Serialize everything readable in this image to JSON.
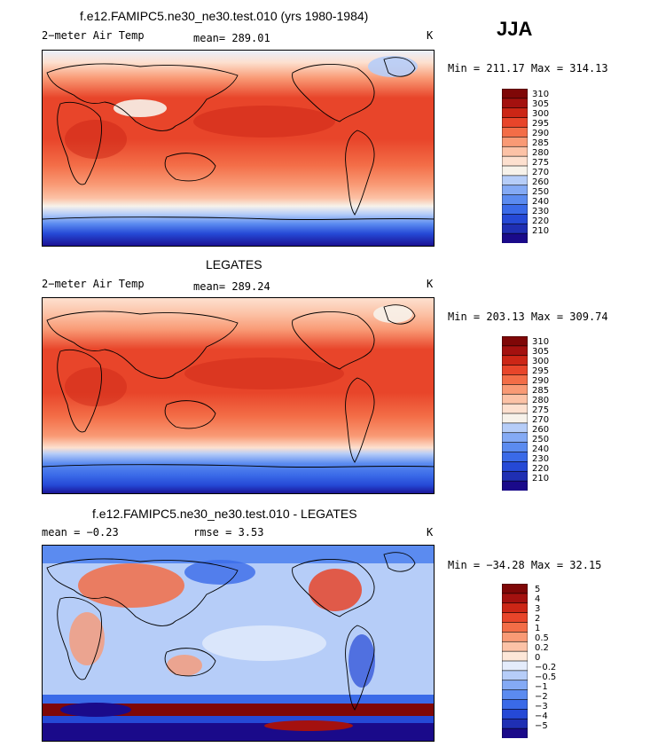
{
  "season": "JJA",
  "colors": {
    "abs_scale": [
      "#1a0a8a",
      "#1f2fb3",
      "#2549d6",
      "#3a6ae8",
      "#5b8bf0",
      "#84aaf5",
      "#b6cdf8",
      "#f7f2ea",
      "#fde0cf",
      "#fcc2a6",
      "#f99a75",
      "#f36d47",
      "#e8452a",
      "#cc2616",
      "#a4110f",
      "#7f0707"
    ],
    "diff_scale": [
      "#1a0a8a",
      "#1f2fb3",
      "#2549d6",
      "#3a6ae8",
      "#5b8bf0",
      "#84aaf5",
      "#b6cdf8",
      "#e4ecfb",
      "#fde7d8",
      "#fcc2a6",
      "#f99a75",
      "#f36d47",
      "#e8452a",
      "#cc2616",
      "#a4110f",
      "#7f0707"
    ]
  },
  "panels": [
    {
      "title": "f.e12.FAMIPC5.ne30_ne30.test.010 (yrs 1980-1984)",
      "variable": "2−meter Air Temp",
      "stat": "mean= 289.01",
      "units": "K",
      "range": "Min = 211.17 Max = 314.13",
      "kind": "abs",
      "colorbar_labels": [
        "310",
        "305",
        "300",
        "295",
        "290",
        "285",
        "280",
        "275",
        "270",
        "260",
        "250",
        "240",
        "230",
        "220",
        "210"
      ]
    },
    {
      "title": "LEGATES",
      "variable": "2−meter Air Temp",
      "stat": "mean= 289.24",
      "units": "K",
      "range": "Min = 203.13 Max = 309.74",
      "kind": "abs",
      "colorbar_labels": [
        "310",
        "305",
        "300",
        "295",
        "290",
        "285",
        "280",
        "275",
        "270",
        "260",
        "250",
        "240",
        "230",
        "220",
        "210"
      ]
    },
    {
      "title": "f.e12.FAMIPC5.ne30_ne30.test.010 - LEGATES",
      "variable": "mean =   −0.23",
      "stat": "rmse =    3.53",
      "units": "K",
      "range": "Min = −34.28 Max =  32.15",
      "kind": "diff",
      "colorbar_labels": [
        "5",
        "4",
        "3",
        "2",
        "1",
        "0.5",
        "0.2",
        "0",
        "−0.2",
        "−0.5",
        "−1",
        "−2",
        "−3",
        "−4",
        "−5"
      ]
    }
  ]
}
